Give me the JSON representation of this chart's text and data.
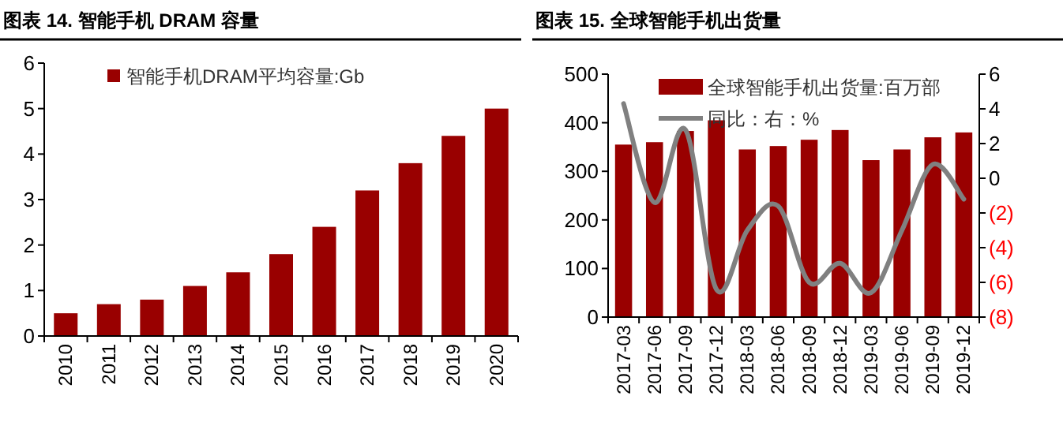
{
  "chart_data": [
    {
      "type": "bar",
      "title": "图表 14. 智能手机 DRAM 容量",
      "categories": [
        "2010",
        "2011",
        "2012",
        "2013",
        "2014",
        "2015",
        "2016",
        "2017",
        "2018",
        "2019",
        "2020"
      ],
      "series": [
        {
          "name": "智能手机DRAM平均容量:Gb",
          "color": "#990000",
          "values": [
            0.5,
            0.7,
            0.8,
            1.1,
            1.4,
            1.8,
            2.4,
            3.2,
            3.8,
            4.4,
            5.0
          ]
        }
      ],
      "ylim": [
        0,
        6
      ],
      "yticks": [
        0,
        1,
        2,
        3,
        4,
        5,
        6
      ],
      "legend": "top left",
      "grid": false
    },
    {
      "type": "bar",
      "title": "图表 15. 全球智能手机出货量",
      "categories": [
        "2017-03",
        "2017-06",
        "2017-09",
        "2017-12",
        "2018-03",
        "2018-06",
        "2018-09",
        "2018-12",
        "2019-03",
        "2019-06",
        "2019-09",
        "2019-12"
      ],
      "series": [
        {
          "name": "全球智能手机出货量:百万部",
          "color": "#990000",
          "values": [
            355,
            360,
            383,
            405,
            345,
            352,
            365,
            385,
            323,
            345,
            370,
            380
          ]
        },
        {
          "name": "同比：右：%",
          "type": "line",
          "axis": "y2",
          "color": "#808080",
          "values": [
            4.3,
            -1.4,
            2.8,
            -6.4,
            -3.0,
            -1.6,
            -6.0,
            -4.9,
            -6.6,
            -3.0,
            0.8,
            -1.2
          ]
        }
      ],
      "ylim": [
        0,
        500
      ],
      "yticks": [
        0,
        100,
        200,
        300,
        400,
        500
      ],
      "y2lim": [
        -8,
        6
      ],
      "y2ticks": [
        {
          "value": -8,
          "label": "(8)"
        },
        {
          "value": -6,
          "label": "(6)"
        },
        {
          "value": -4,
          "label": "(4)"
        },
        {
          "value": -2,
          "label": "(2)"
        },
        0,
        2,
        4,
        6
      ],
      "legend": "top",
      "grid": false
    }
  ]
}
